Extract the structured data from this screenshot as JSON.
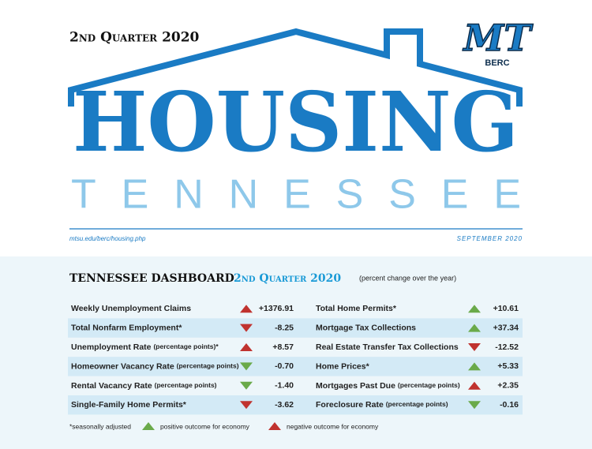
{
  "header": {
    "period": "2nd Quarter 2020",
    "title": "HOUSING",
    "subtitle": "TENNESSEE",
    "url": "mtsu.edu/berc/housing.php",
    "date": "SEPTEMBER 2020"
  },
  "logo": {
    "letters": "MT",
    "label": "BERC"
  },
  "dashboard": {
    "title": "TENNESSEE DASHBOARD",
    "period": "2nd Quarter 2020",
    "note": "(percent change over the year)",
    "columns": [
      [
        {
          "label": "Weekly Unemployment Claims",
          "value": "+1376.91",
          "color": "#c0332f"
        },
        {
          "label": "Total Nonfarm Employment*",
          "value": "-8.25",
          "color": "#c0332f"
        },
        {
          "label": "Unemployment Rate",
          "qualifier": "(percentage points)*",
          "value": "+8.57",
          "color": "#c0332f"
        },
        {
          "label": "Homeowner Vacancy Rate",
          "qualifier": "(percentage points)",
          "value": "-0.70",
          "color": "#6aaa4a"
        },
        {
          "label": "Rental Vacancy Rate",
          "qualifier": "(percentage points)",
          "value": "-1.40",
          "color": "#6aaa4a"
        },
        {
          "label": "Single-Family Home Permits*",
          "value": "-3.62",
          "color": "#c0332f"
        }
      ],
      [
        {
          "label": "Total Home Permits*",
          "value": "+10.61",
          "color": "#6aaa4a"
        },
        {
          "label": "Mortgage Tax Collections",
          "value": "+37.34",
          "color": "#6aaa4a"
        },
        {
          "label": "Real Estate Transfer Tax Collections",
          "value": "-12.52",
          "color": "#c0332f"
        },
        {
          "label": "Home Prices*",
          "value": "+5.33",
          "color": "#6aaa4a"
        },
        {
          "label": "Mortgages Past Due",
          "qualifier": "(percentage points)",
          "value": "+2.35",
          "color": "#c0332f"
        },
        {
          "label": "Foreclosure Rate",
          "qualifier": "(percentage points)",
          "value": "-0.16",
          "color": "#6aaa4a"
        }
      ]
    ]
  },
  "footer": {
    "footnote": "*seasonally adjusted",
    "legend": [
      {
        "label": "positive outcome for economy",
        "color": "#6aaa4a"
      },
      {
        "label": "negative outcome for economy",
        "color": "#c0332f"
      }
    ]
  }
}
